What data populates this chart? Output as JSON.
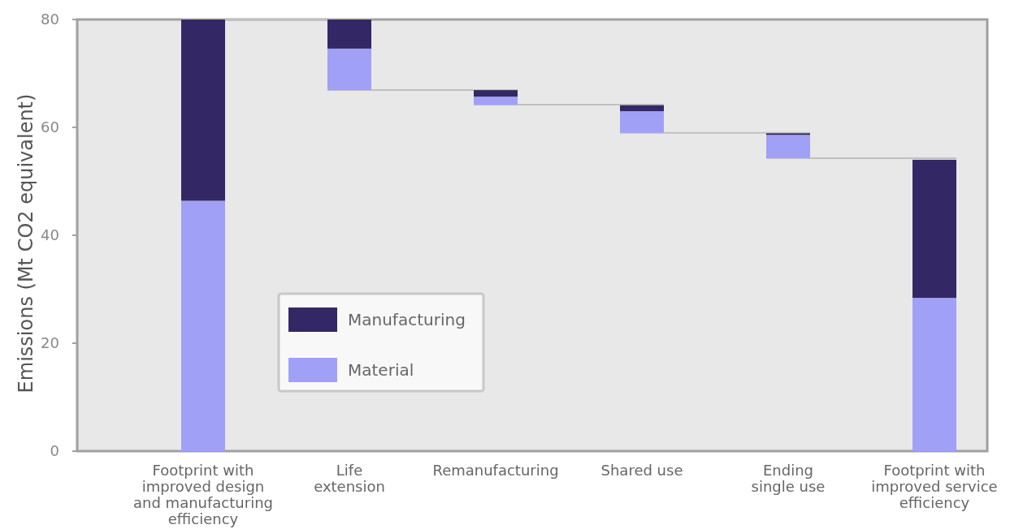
{
  "chart_data": {
    "type": "bar",
    "ylabel": "Emissions (Mt CO2 equivalent)",
    "categories": [
      "Footprint with\nimproved design\nand manufacturing\nefficiency",
      "Life\nextension",
      "Remanufacturing",
      "Shared use",
      "Ending\nsingle use",
      "Footprint with\nimproved service\nefficiency"
    ],
    "series": [
      {
        "name": "Material",
        "color": "#a1a0f7",
        "base": [
          0,
          66.9,
          64.2,
          59.0,
          54.3,
          0
        ],
        "values": [
          46.4,
          7.7,
          1.5,
          4.0,
          4.3,
          28.4
        ]
      },
      {
        "name": "Manufacturing",
        "color": "#332865",
        "base": [
          46.4,
          74.6,
          65.7,
          63.0,
          58.6,
          28.4
        ],
        "values": [
          33.6,
          5.4,
          1.2,
          1.1,
          0.3,
          25.6
        ]
      }
    ],
    "ylim": [
      0,
      80
    ],
    "yticks": [
      0,
      20,
      40,
      60,
      80
    ],
    "legend": "bottom left"
  }
}
